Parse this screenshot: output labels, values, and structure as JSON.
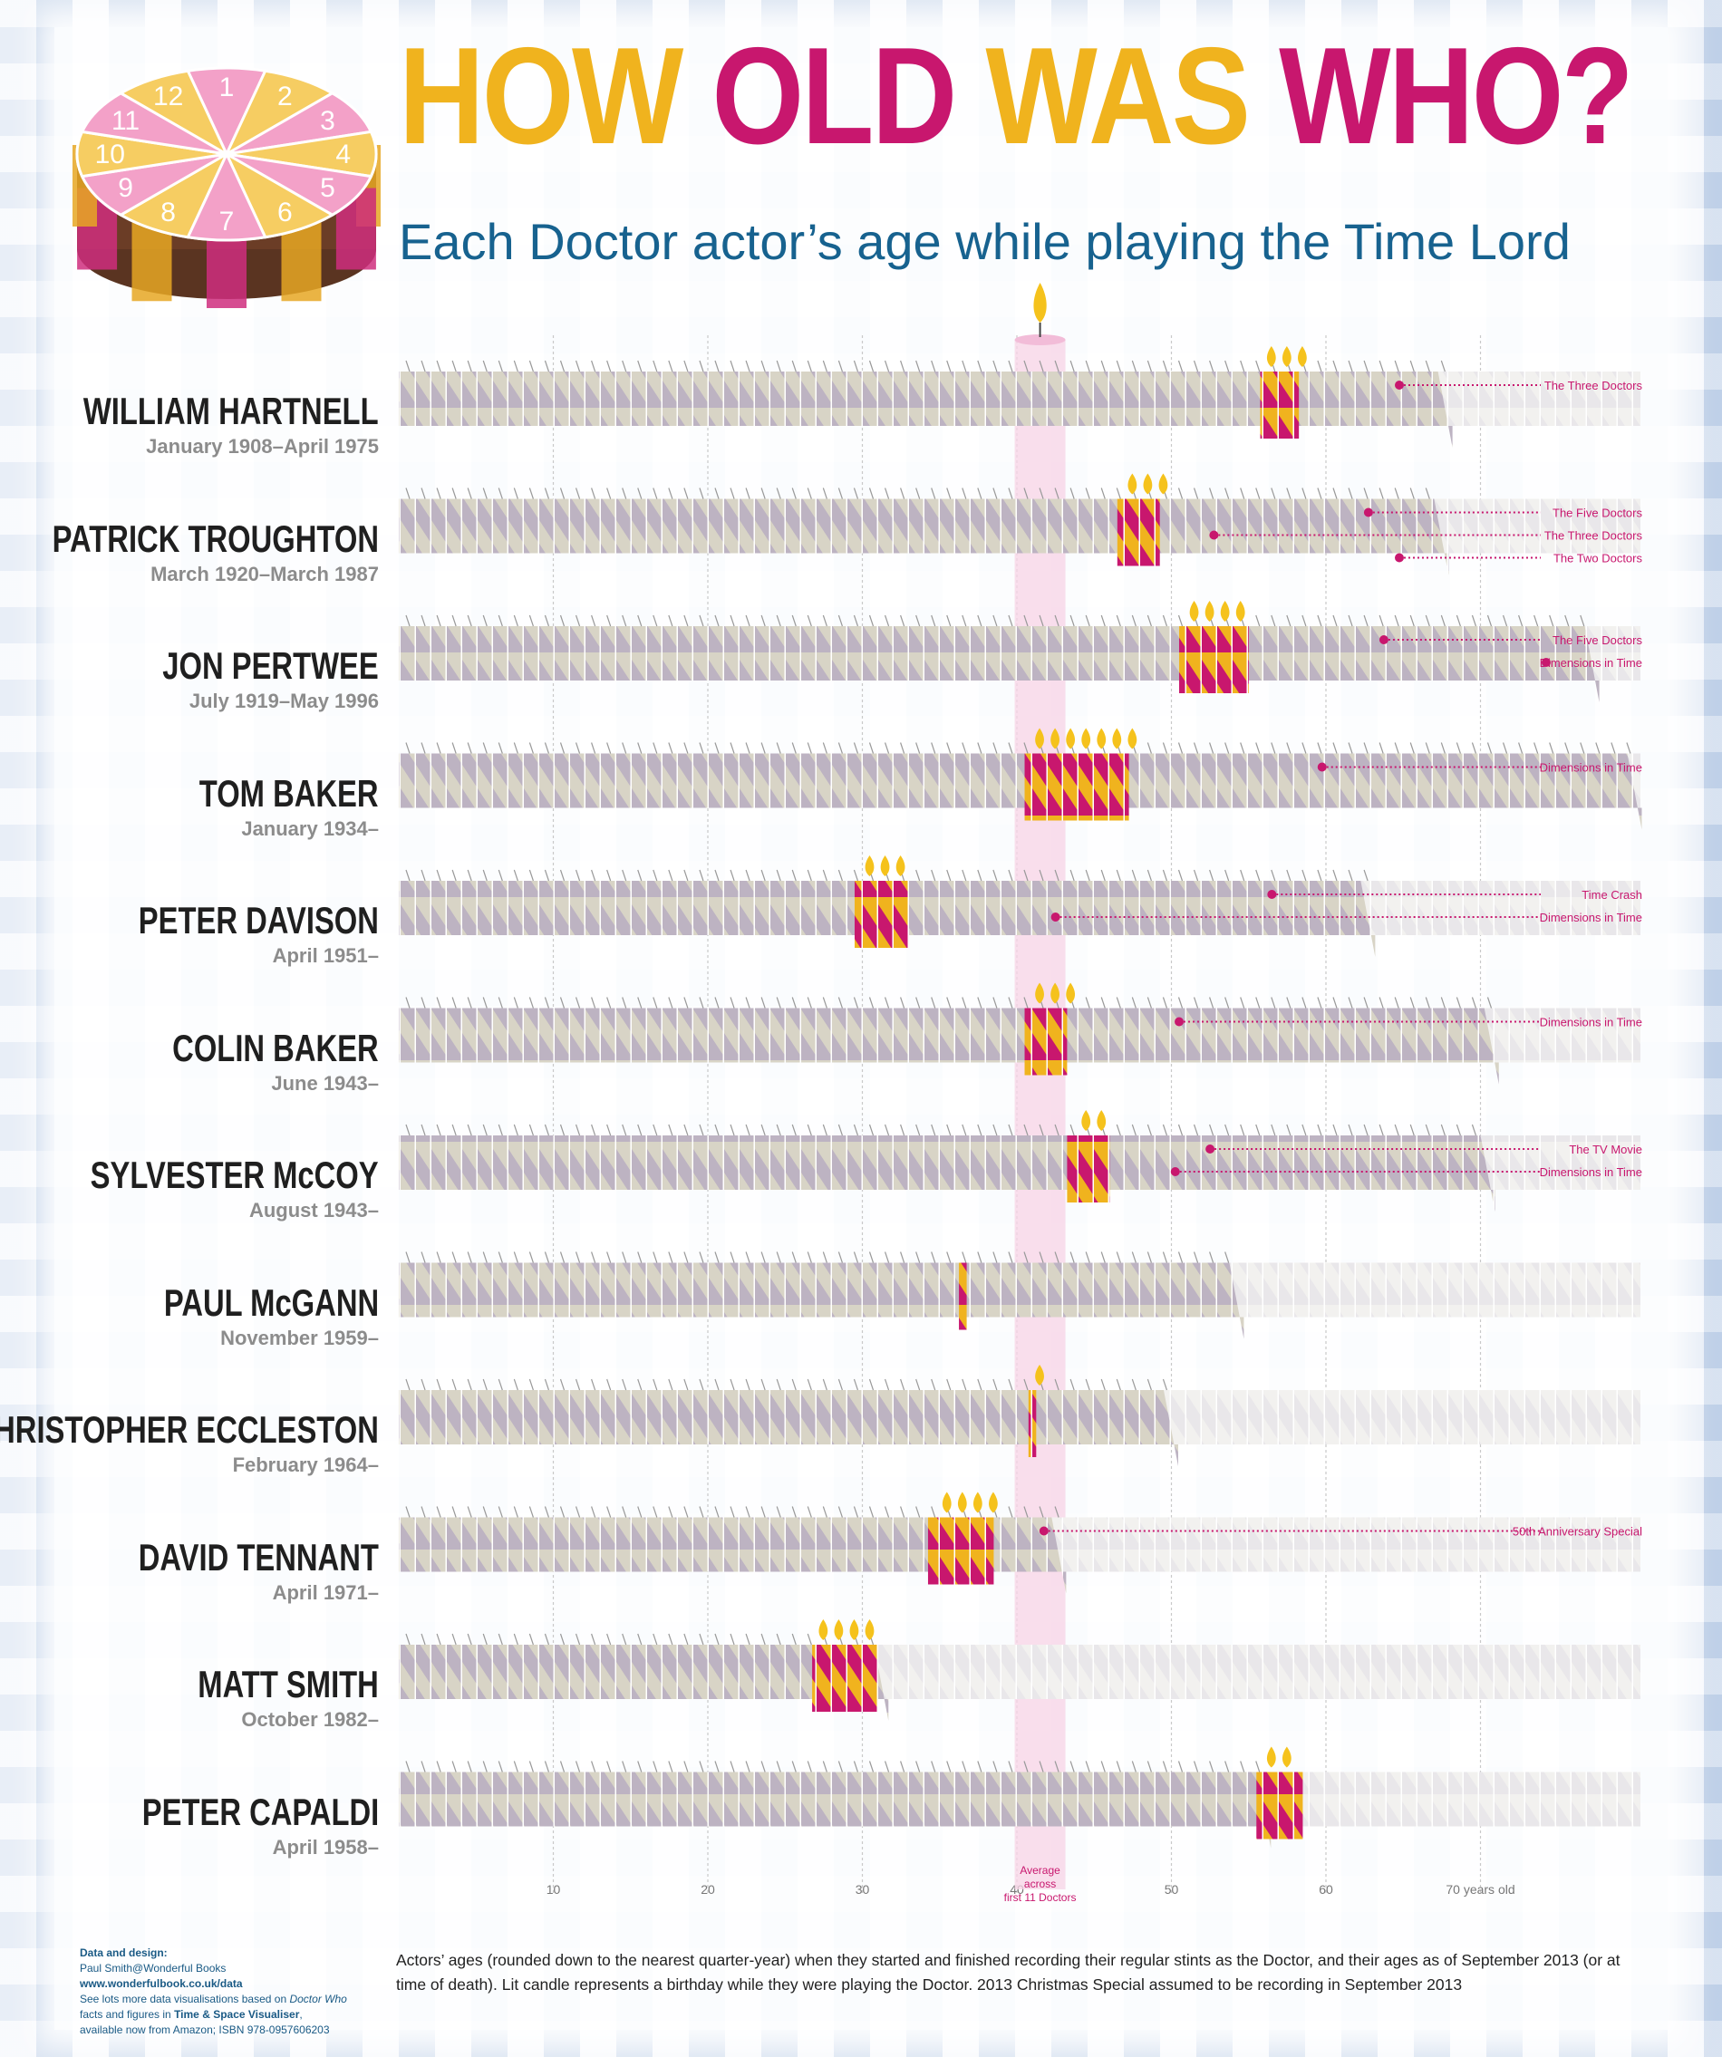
{
  "header": {
    "title_part1": "HOW ",
    "title_part2": "OLD ",
    "title_part3": "WAS ",
    "title_part4": "WHO?",
    "subtitle": "Each Doctor actor’s age while playing the Time Lord"
  },
  "cake": {
    "numbers": [
      "1",
      "2",
      "3",
      "4",
      "5",
      "6",
      "7",
      "8",
      "9",
      "10",
      "11",
      "12"
    ]
  },
  "chart_data": {
    "type": "bar",
    "title": "HOW OLD WAS WHO?",
    "subtitle": "Each Doctor actor’s age while playing the Time Lord",
    "x_label": "years old",
    "x_range": [
      0,
      80
    ],
    "x_ticks": [
      10,
      20,
      30,
      40,
      50,
      60,
      70
    ],
    "x_tick_labels": [
      "10",
      "20",
      "30",
      "40",
      "50",
      "60",
      "70 years old"
    ],
    "average_label": "Average across first 11 Doctors",
    "average_age": 41.5,
    "series": [
      {
        "name": "WILLIAM HARTNELL",
        "dates": "January 1908–April 1975",
        "start_age": 55.75,
        "end_age": 58.25,
        "current_age": 67.25,
        "deceased": true,
        "lit_candles": 3,
        "annotations": [
          {
            "label": "The Three Doctors",
            "age": 64.75
          }
        ]
      },
      {
        "name": "PATRICK TROUGHTON",
        "dates": "March 1920–March 1987",
        "start_age": 46.5,
        "end_age": 49.25,
        "current_age": 67.0,
        "deceased": true,
        "lit_candles": 3,
        "annotations": [
          {
            "label": "The Five Doctors",
            "age": 62.75
          },
          {
            "label": "The Three Doctors",
            "age": 52.75
          },
          {
            "label": "The Two Doctors",
            "age": 64.75
          }
        ]
      },
      {
        "name": "JON PERTWEE",
        "dates": "July 1919–May 1996",
        "start_age": 50.5,
        "end_age": 55.0,
        "current_age": 76.75,
        "deceased": true,
        "lit_candles": 4,
        "annotations": [
          {
            "label": "The Five Doctors",
            "age": 63.75
          },
          {
            "label": "Dimensions in Time",
            "age": 74.25
          }
        ]
      },
      {
        "name": "TOM BAKER",
        "dates": "January 1934–",
        "start_age": 40.5,
        "end_age": 47.25,
        "current_age": 79.5,
        "deceased": false,
        "lit_candles": 7,
        "annotations": [
          {
            "label": "Dimensions in Time",
            "age": 59.75
          }
        ]
      },
      {
        "name": "PETER DAVISON",
        "dates": "April 1951–",
        "start_age": 29.5,
        "end_age": 33.0,
        "current_age": 62.25,
        "deceased": false,
        "lit_candles": 3,
        "annotations": [
          {
            "label": "Time Crash",
            "age": 56.5
          },
          {
            "label": "Dimensions in Time",
            "age": 42.5
          }
        ]
      },
      {
        "name": "COLIN BAKER",
        "dates": "June 1943–",
        "start_age": 40.5,
        "end_age": 43.25,
        "current_age": 70.25,
        "deceased": false,
        "lit_candles": 3,
        "annotations": [
          {
            "label": "Dimensions in Time",
            "age": 50.5
          }
        ]
      },
      {
        "name": "SYLVESTER McCOY",
        "dates": "August 1943–",
        "start_age": 43.25,
        "end_age": 46.0,
        "current_age": 70.0,
        "deceased": false,
        "lit_candles": 2,
        "annotations": [
          {
            "label": "The TV Movie",
            "age": 52.5
          },
          {
            "label": "Dimensions in Time",
            "age": 50.25
          }
        ]
      },
      {
        "name": "PAUL McGANN",
        "dates": "November 1959–",
        "start_age": 36.25,
        "end_age": 36.75,
        "current_age": 53.75,
        "deceased": false,
        "lit_candles": 0,
        "annotations": []
      },
      {
        "name": "CHRISTOPHER ECCLESTON",
        "dates": "February 1964–",
        "start_age": 40.75,
        "end_age": 41.25,
        "current_age": 49.5,
        "deceased": false,
        "lit_candles": 1,
        "annotations": []
      },
      {
        "name": "DAVID TENNANT",
        "dates": "April 1971–",
        "start_age": 34.25,
        "end_age": 38.5,
        "current_age": 42.25,
        "deceased": false,
        "lit_candles": 4,
        "annotations": [
          {
            "label": "50th Anniversary Special",
            "age": 41.75
          }
        ]
      },
      {
        "name": "MATT SMITH",
        "dates": "October 1982–",
        "start_age": 26.75,
        "end_age": 31.0,
        "current_age": 30.75,
        "deceased": false,
        "lit_candles": 4,
        "annotations": []
      },
      {
        "name": "PETER CAPALDI",
        "dates": "April 1958–",
        "start_age": 55.5,
        "end_age": 58.5,
        "current_age": 55.5,
        "deceased": false,
        "lit_candles": 2,
        "annotations": []
      }
    ]
  },
  "credits": {
    "heading": "Data and design:",
    "author": "Paul Smith@Wonderful Books",
    "url": "www.wonderfulbook.co.uk/data",
    "line1a": "See lots more data visualisations based on ",
    "line1b": "Doctor Who",
    "line2a": "facts and figures in ",
    "line2b": "Time & Space Visualiser",
    "line2c": ",",
    "line3": "available now from Amazon; ISBN 978-0957606203"
  },
  "footnote": "Actors’ ages (rounded down to the nearest quarter-year) when they started and finished recording their regular stints as the Doctor, and their ages as of September 2013 (or at time of death). Lit candle represents a birthday while they were playing the Doctor. 2013 Christmas Special assumed to be recording in September 2013",
  "colors": {
    "magenta": "#c8176e",
    "gold": "#f0b31e",
    "blue": "#17628f",
    "grey": "#b7b0b7",
    "cream": "#d7d2c4"
  }
}
